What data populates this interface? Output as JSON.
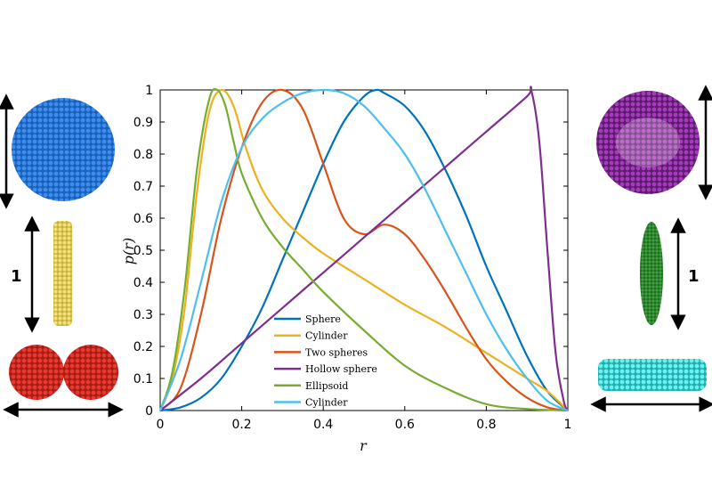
{
  "chart_data": {
    "type": "line",
    "xlabel": "r",
    "ylabel": "p(r)",
    "xlim": [
      0,
      1
    ],
    "ylim": [
      0,
      1
    ],
    "xticks": [
      "0",
      "0.2",
      "0.4",
      "0.6",
      "0.8",
      "1"
    ],
    "yticks": [
      "0",
      "0.1",
      "0.2",
      "0.3",
      "0.4",
      "0.5",
      "0.6",
      "0.7",
      "0.8",
      "0.9",
      "1"
    ],
    "grid": false,
    "legend_position": "bottom-center",
    "series": [
      {
        "name": "Sphere",
        "color": "#0072BD",
        "x": [
          0,
          0.05,
          0.1,
          0.15,
          0.2,
          0.25,
          0.3,
          0.35,
          0.4,
          0.45,
          0.5,
          0.53,
          0.55,
          0.6,
          0.65,
          0.7,
          0.75,
          0.8,
          0.85,
          0.9,
          0.95,
          1
        ],
        "y": [
          0,
          0.01,
          0.04,
          0.1,
          0.2,
          0.32,
          0.47,
          0.62,
          0.77,
          0.9,
          0.98,
          1.0,
          0.99,
          0.95,
          0.87,
          0.75,
          0.61,
          0.45,
          0.31,
          0.17,
          0.06,
          0
        ]
      },
      {
        "name": "Cylinder",
        "color": "#EDB120",
        "x": [
          0,
          0.03,
          0.06,
          0.09,
          0.12,
          0.15,
          0.18,
          0.21,
          0.25,
          0.3,
          0.35,
          0.4,
          0.5,
          0.6,
          0.7,
          0.8,
          0.9,
          0.95,
          1
        ],
        "y": [
          0,
          0.1,
          0.32,
          0.68,
          0.93,
          1.0,
          0.95,
          0.82,
          0.69,
          0.6,
          0.54,
          0.49,
          0.41,
          0.33,
          0.26,
          0.18,
          0.1,
          0.06,
          0
        ]
      },
      {
        "name": "Two spheres",
        "color": "#D95319",
        "x": [
          0,
          0.05,
          0.1,
          0.15,
          0.2,
          0.25,
          0.3,
          0.35,
          0.4,
          0.45,
          0.5,
          0.55,
          0.6,
          0.65,
          0.7,
          0.75,
          0.8,
          0.85,
          0.9,
          0.95,
          1
        ],
        "y": [
          0,
          0.07,
          0.3,
          0.6,
          0.82,
          0.96,
          1.0,
          0.94,
          0.77,
          0.6,
          0.55,
          0.58,
          0.55,
          0.47,
          0.37,
          0.26,
          0.16,
          0.09,
          0.04,
          0.01,
          0
        ]
      },
      {
        "name": "Hollow sphere",
        "color": "#7E2F8E",
        "x": [
          0,
          0.1,
          0.2,
          0.3,
          0.4,
          0.5,
          0.6,
          0.7,
          0.8,
          0.9,
          0.91,
          0.93,
          0.95,
          0.97,
          0.99,
          1
        ],
        "y": [
          0,
          0.1,
          0.21,
          0.32,
          0.43,
          0.54,
          0.65,
          0.76,
          0.87,
          0.98,
          1.0,
          0.84,
          0.5,
          0.18,
          0.03,
          0
        ]
      },
      {
        "name": "Ellipsoid",
        "color": "#77AC30",
        "x": [
          0,
          0.03,
          0.06,
          0.09,
          0.12,
          0.14,
          0.16,
          0.18,
          0.2,
          0.25,
          0.3,
          0.35,
          0.4,
          0.5,
          0.6,
          0.7,
          0.8,
          0.9,
          1
        ],
        "y": [
          0,
          0.12,
          0.38,
          0.75,
          0.97,
          1.0,
          0.95,
          0.84,
          0.74,
          0.6,
          0.51,
          0.44,
          0.37,
          0.25,
          0.14,
          0.07,
          0.02,
          0.005,
          0
        ]
      },
      {
        "name": "Cylinder",
        "color": "#4DBEEE",
        "x": [
          0,
          0.05,
          0.1,
          0.15,
          0.2,
          0.25,
          0.3,
          0.35,
          0.4,
          0.45,
          0.5,
          0.55,
          0.6,
          0.65,
          0.7,
          0.75,
          0.8,
          0.85,
          0.9,
          0.95,
          1
        ],
        "y": [
          0,
          0.16,
          0.4,
          0.65,
          0.82,
          0.91,
          0.96,
          0.99,
          1.0,
          0.99,
          0.95,
          0.88,
          0.8,
          0.69,
          0.56,
          0.43,
          0.3,
          0.19,
          0.1,
          0.03,
          0
        ]
      }
    ]
  },
  "side_labels": {
    "left_scale": "1",
    "right_scale": "1"
  },
  "shapes": {
    "left": [
      {
        "name": "sphere",
        "color": "#1F6FD1"
      },
      {
        "name": "cylinder",
        "color": "#E8D35A"
      },
      {
        "name": "two-spheres",
        "color": "#D92B22"
      }
    ],
    "right": [
      {
        "name": "hollow-sphere",
        "color": "#8B2A9E"
      },
      {
        "name": "ellipsoid",
        "color": "#2E8B2E"
      },
      {
        "name": "flat-cylinder",
        "color": "#33D6D6"
      }
    ]
  }
}
